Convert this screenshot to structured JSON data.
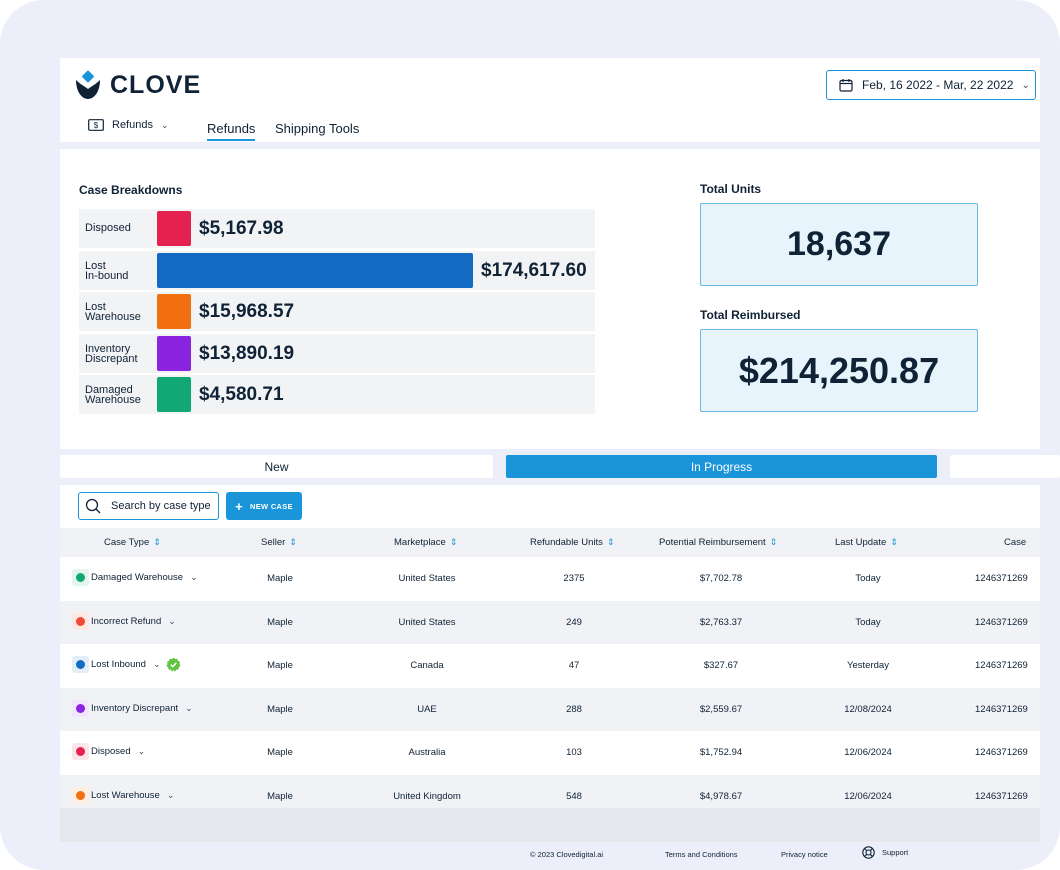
{
  "app": {
    "logo_text": "CLOVE"
  },
  "header": {
    "date_range": "Feb, 16 2022 - Mar, 22 2022",
    "module_select": "Refunds",
    "tabs": [
      {
        "label": "Refunds"
      },
      {
        "label": "Shipping Tools"
      }
    ]
  },
  "breakdown": {
    "title": "Case Breakdowns",
    "items": [
      {
        "label_line1": "Disposed",
        "label_line2": "",
        "value": "$5,167.98",
        "amount": 5167.98,
        "color": "#e5214f"
      },
      {
        "label_line1": "Lost",
        "label_line2": "In-bound",
        "value": "$174,617.60",
        "amount": 174617.6,
        "color": "#136ac2"
      },
      {
        "label_line1": "Lost",
        "label_line2": "Warehouse",
        "value": "$15,968.57",
        "amount": 15968.57,
        "color": "#f2700f"
      },
      {
        "label_line1": "Inventory",
        "label_line2": "Discrepant",
        "value": "$13,890.19",
        "amount": 13890.19,
        "color": "#8a24e0"
      },
      {
        "label_line1": "Damaged",
        "label_line2": "Warehouse",
        "value": "$4,580.71",
        "amount": 4580.71,
        "color": "#12a876"
      }
    ]
  },
  "totals": {
    "units_label": "Total Units",
    "units_value": "18,637",
    "reimbursed_label": "Total Reimbursed",
    "reimbursed_value": "$214,250.87"
  },
  "status_tabs": [
    {
      "label": "New",
      "active": false
    },
    {
      "label": "In Progress",
      "active": true
    },
    {
      "label": "",
      "active": false
    }
  ],
  "toolbar": {
    "search_placeholder": "Search by case type",
    "new_case_label": "NEW CASE"
  },
  "table": {
    "columns": [
      "Case Type",
      "Seller",
      "Marketplace",
      "Refundable Units",
      "Potential Reimbursement",
      "Last Update",
      "Case"
    ],
    "rows": [
      {
        "case_type": "Damaged Warehouse",
        "dot": "#12a876",
        "tint": "#e4f5ee",
        "seller": "Maple",
        "marketplace": "United States",
        "units": "2375",
        "reimbursement": "$7,702.78",
        "last_update": "Today",
        "case_id": "1246371269",
        "verified": false
      },
      {
        "case_type": "Incorrect Refund",
        "dot": "#f04a35",
        "tint": "#fde8e4",
        "seller": "Maple",
        "marketplace": "United States",
        "units": "249",
        "reimbursement": "$2,763.37",
        "last_update": "Today",
        "case_id": "1246371269",
        "verified": false
      },
      {
        "case_type": "Lost Inbound",
        "dot": "#136ac2",
        "tint": "#e3edf8",
        "seller": "Maple",
        "marketplace": "Canada",
        "units": "47",
        "reimbursement": "$327.67",
        "last_update": "Yesterday",
        "case_id": "1246371269",
        "verified": true
      },
      {
        "case_type": "Inventory Discrepant",
        "dot": "#8a24e0",
        "tint": "#f1e6fb",
        "seller": "Maple",
        "marketplace": "UAE",
        "units": "288",
        "reimbursement": "$2,559.67",
        "last_update": "12/08/2024",
        "case_id": "1246371269",
        "verified": false
      },
      {
        "case_type": "Disposed",
        "dot": "#e5214f",
        "tint": "#fce4ea",
        "seller": "Maple",
        "marketplace": "Australia",
        "units": "103",
        "reimbursement": "$1,752.94",
        "last_update": "12/06/2024",
        "case_id": "1246371269",
        "verified": false
      },
      {
        "case_type": "Lost Warehouse",
        "dot": "#f2700f",
        "tint": "#fdeee1",
        "seller": "Maple",
        "marketplace": "United Kingdom",
        "units": "548",
        "reimbursement": "$4,978.67",
        "last_update": "12/06/2024",
        "case_id": "1246371269",
        "verified": false
      }
    ]
  },
  "footer": {
    "copyright": "© 2023 Clovedigital.ai",
    "terms": "Terms and Conditions",
    "privacy": "Privacy notice",
    "support": "Support"
  },
  "colors": {
    "accent": "#1a95d9",
    "text": "#0f2236",
    "background": "#eceef9"
  },
  "icons": [
    "clove-logo",
    "calendar-icon",
    "dollar-bill-icon",
    "chevron-down-icon",
    "search-icon",
    "plus-icon",
    "sort-icon",
    "verified-badge-icon",
    "lifebuoy-icon"
  ]
}
